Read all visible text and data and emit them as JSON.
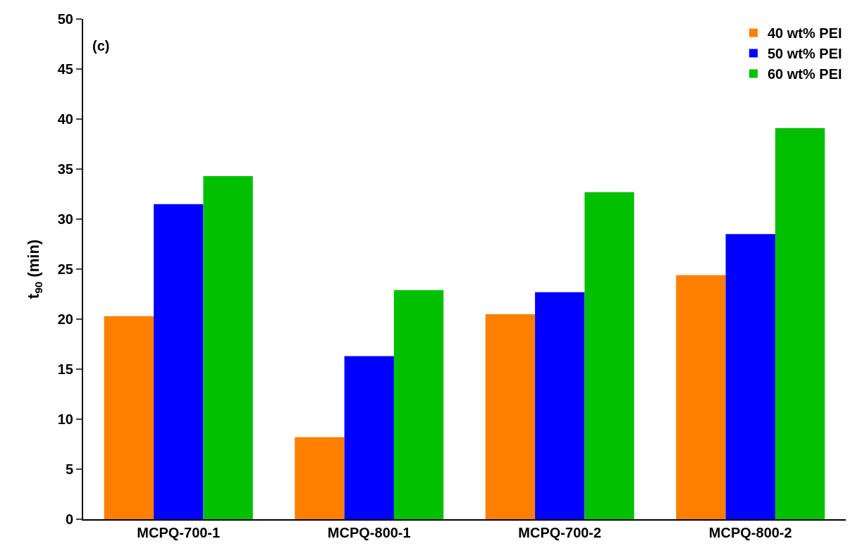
{
  "chart_data": {
    "type": "bar",
    "ylabel": "t$_{90}$ (min)",
    "annotations": [
      "(c)"
    ],
    "categories": [
      "MCPQ-700-1",
      "MCPQ-800-1",
      "MCPQ-700-2",
      "MCPQ-800-2"
    ],
    "series": [
      {
        "name": "40 wt% PEI",
        "color": "#ff7f00",
        "values": [
          20.3,
          8.2,
          20.5,
          24.4
        ]
      },
      {
        "name": "50 wt% PEI",
        "color": "#0000ff",
        "values": [
          31.5,
          16.3,
          22.7,
          28.5
        ]
      },
      {
        "name": "60 wt% PEI",
        "color": "#00c000",
        "values": [
          34.3,
          22.9,
          32.7,
          39.1
        ]
      }
    ],
    "ylim": [
      0,
      50
    ],
    "yticks": [
      0,
      5,
      10,
      15,
      20,
      25,
      30,
      35,
      40,
      45,
      50
    ],
    "grid": false,
    "legend": "top right"
  }
}
